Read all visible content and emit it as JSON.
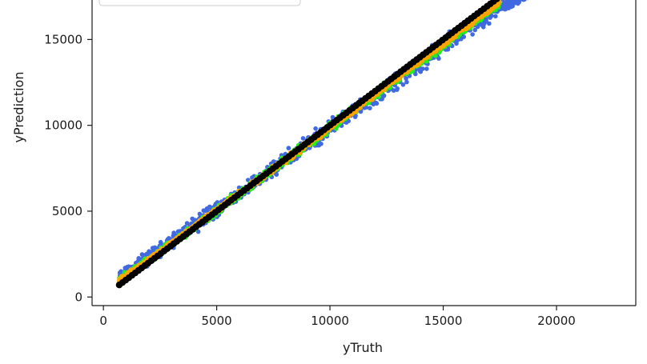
{
  "chart_data": {
    "type": "scatter",
    "title": "",
    "xlabel": "yTruth",
    "ylabel": "yPrediction",
    "xlim": [
      -500,
      23500
    ],
    "ylim": [
      -500,
      17300
    ],
    "x_ticks": [
      0,
      5000,
      10000,
      15000,
      20000
    ],
    "x_tick_labels": [
      "0",
      "5000",
      "10000",
      "15000",
      "20000"
    ],
    "y_ticks": [
      0,
      5000,
      10000,
      15000
    ],
    "y_tick_labels": [
      "0",
      "5000",
      "10000",
      "15000"
    ],
    "grid": false,
    "legend": {
      "placement": "top-left",
      "entries": []
    },
    "series": [
      {
        "color": "#4169e1",
        "x": [
          700,
          2000,
          4000,
          6000,
          8000,
          10000,
          12000,
          14000,
          16000,
          17500,
          18800
        ],
        "y_low": [
          500,
          1700,
          3500,
          5400,
          7300,
          9200,
          11000,
          12900,
          14800,
          16200,
          17300
        ],
        "y_high": [
          1700,
          2900,
          4800,
          6600,
          8600,
          10500,
          12300,
          14300,
          16400,
          17500,
          17800
        ],
        "approx_points": 900
      },
      {
        "color": "#22ee22",
        "x": [
          700,
          2000,
          4000,
          6000,
          8000,
          10000,
          12000,
          14000,
          16000,
          17500
        ],
        "y_low": [
          650,
          1850,
          3750,
          5650,
          7550,
          9500,
          11400,
          13350,
          15300,
          16800
        ],
        "y_high": [
          1300,
          2450,
          4350,
          6350,
          8300,
          10250,
          12200,
          14200,
          16100,
          17300
        ],
        "approx_points": 1100
      },
      {
        "color": "#ffa500",
        "x": [
          700,
          2000,
          4000,
          6000,
          8000,
          10000,
          12000,
          14000,
          16000,
          17500
        ],
        "y_low": [
          700,
          1950,
          3850,
          5800,
          7700,
          9650,
          11600,
          13550,
          15500,
          17000
        ],
        "y_high": [
          1150,
          2350,
          4300,
          6250,
          8200,
          10150,
          12100,
          14050,
          16000,
          17400
        ],
        "approx_points": 1300
      },
      {
        "color": "#000000",
        "x": [
          700,
          17500
        ],
        "y": [
          700,
          17500
        ],
        "approx_points": 120
      }
    ]
  }
}
